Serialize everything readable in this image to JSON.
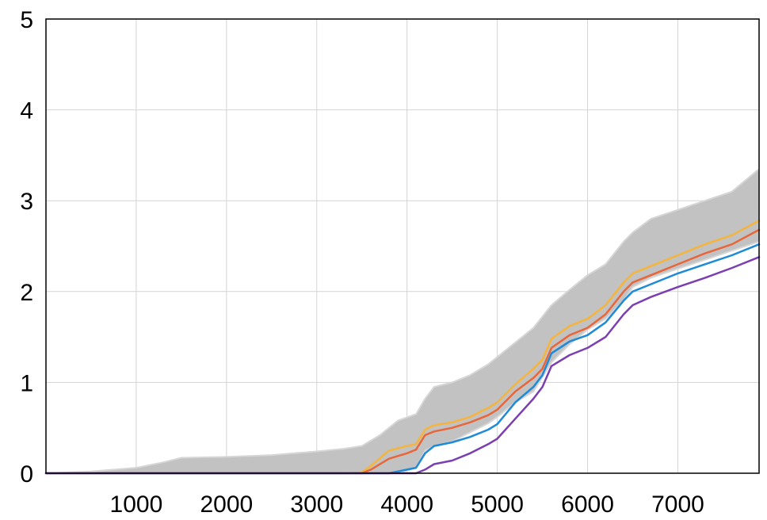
{
  "chart_data": {
    "type": "area",
    "title": "",
    "xlabel": "",
    "ylabel": "",
    "xlim": [
      0,
      7900
    ],
    "ylim": [
      0,
      5
    ],
    "grid": true,
    "x_ticks": [
      1000,
      2000,
      3000,
      4000,
      5000,
      6000,
      7000
    ],
    "x_tick_labels": [
      "1000",
      "2000",
      "3000",
      "4000",
      "5000",
      "6000",
      "7000"
    ],
    "y_ticks": [
      0,
      1,
      2,
      3,
      4,
      5
    ],
    "y_tick_labels": [
      "0",
      "1",
      "2",
      "3",
      "4",
      "5"
    ],
    "band": {
      "color": "#c2c2c2",
      "edge_color": "#d6d6d6",
      "x": [
        0,
        500,
        1000,
        1300,
        1500,
        2000,
        2500,
        3000,
        3300,
        3500,
        3700,
        3900,
        4100,
        4200,
        4300,
        4500,
        4700,
        4900,
        5000,
        5200,
        5400,
        5600,
        5800,
        5900,
        6000,
        6200,
        6400,
        6500,
        6700,
        7000,
        7300,
        7600,
        7900
      ],
      "upper": [
        0,
        0.02,
        0.06,
        0.12,
        0.17,
        0.18,
        0.2,
        0.24,
        0.27,
        0.3,
        0.42,
        0.58,
        0.65,
        0.82,
        0.95,
        1.0,
        1.08,
        1.2,
        1.28,
        1.44,
        1.6,
        1.85,
        2.02,
        2.1,
        2.18,
        2.3,
        2.55,
        2.65,
        2.8,
        2.9,
        3.0,
        3.1,
        3.35
      ],
      "lower": [
        0,
        0,
        0,
        0,
        0,
        0,
        0,
        0,
        0,
        0,
        0,
        0,
        0.06,
        0.25,
        0.3,
        0.35,
        0.45,
        0.55,
        0.62,
        0.78,
        0.9,
        1.22,
        1.42,
        1.5,
        1.58,
        1.7,
        1.9,
        2.05,
        2.15,
        2.25,
        2.35,
        2.45,
        2.55
      ]
    },
    "x": [
      0,
      3000,
      3300,
      3500,
      3600,
      3800,
      4000,
      4100,
      4200,
      4300,
      4500,
      4700,
      4900,
      5000,
      5200,
      5400,
      5500,
      5600,
      5800,
      6000,
      6200,
      6400,
      6500,
      6700,
      7000,
      7300,
      7600,
      7900
    ],
    "series": [
      {
        "color": "#f5b43c",
        "values": [
          0,
          0,
          0,
          0.01,
          0.08,
          0.25,
          0.3,
          0.32,
          0.48,
          0.53,
          0.56,
          0.62,
          0.72,
          0.78,
          0.98,
          1.15,
          1.25,
          1.48,
          1.62,
          1.7,
          1.85,
          2.1,
          2.2,
          2.28,
          2.4,
          2.52,
          2.62,
          2.78
        ]
      },
      {
        "color": "#e8663a",
        "values": [
          0,
          0,
          0,
          0,
          0.04,
          0.16,
          0.22,
          0.26,
          0.42,
          0.46,
          0.5,
          0.56,
          0.64,
          0.7,
          0.9,
          1.05,
          1.15,
          1.38,
          1.52,
          1.6,
          1.75,
          2.0,
          2.1,
          2.18,
          2.3,
          2.42,
          2.52,
          2.68
        ]
      },
      {
        "color": "#1f8ad6",
        "values": [
          0,
          0,
          0,
          0,
          0,
          0,
          0.04,
          0.06,
          0.22,
          0.3,
          0.34,
          0.4,
          0.48,
          0.54,
          0.78,
          0.95,
          1.08,
          1.32,
          1.45,
          1.52,
          1.66,
          1.9,
          2.0,
          2.08,
          2.2,
          2.3,
          2.4,
          2.52
        ]
      },
      {
        "color": "#7a3fb0",
        "values": [
          0,
          0,
          0,
          0,
          0,
          0,
          0,
          0,
          0.04,
          0.1,
          0.14,
          0.22,
          0.32,
          0.38,
          0.6,
          0.82,
          0.95,
          1.18,
          1.3,
          1.38,
          1.5,
          1.75,
          1.85,
          1.94,
          2.05,
          2.15,
          2.26,
          2.38
        ]
      }
    ]
  }
}
